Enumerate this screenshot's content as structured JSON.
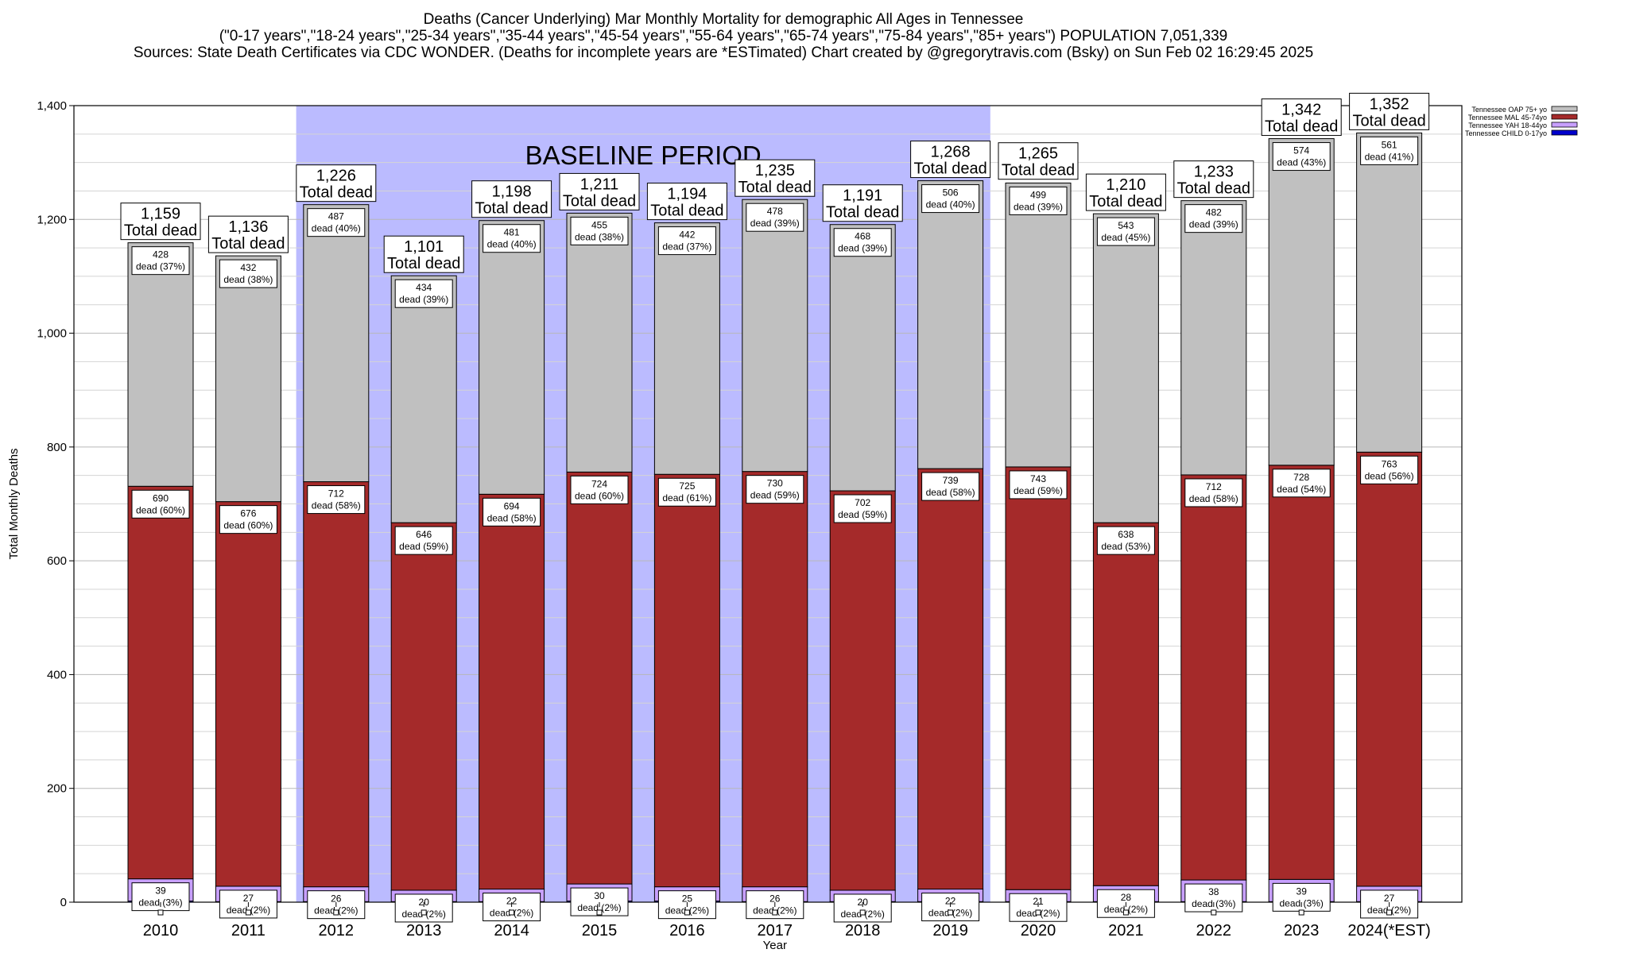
{
  "title": {
    "line1": "Deaths (Cancer Underlying) Mar Monthly Mortality for demographic All Ages in Tennessee",
    "line2": "(\"0-17 years\",\"18-24 years\",\"25-34 years\",\"35-44 years\",\"45-54 years\",\"55-64 years\",\"65-74 years\",\"75-84 years\",\"85+ years\") POPULATION 7,051,339",
    "line3": "Sources: State Death Certificates via CDC WONDER. (Deaths for incomplete years are *ESTimated)                Chart created by @gregorytravis.com (Bsky) on Sun Feb 02 16:29:45 2025"
  },
  "chart_data": {
    "type": "bar",
    "stacked": true,
    "xlabel": "Year",
    "ylabel": "Total Monthly Deaths",
    "ylim": [
      0,
      1400
    ],
    "y_ticks": [
      0,
      200,
      400,
      600,
      800,
      1000,
      1200,
      1400
    ],
    "y_tick_labels": [
      "0",
      "200",
      "400",
      "600",
      "800",
      "1,000",
      "1,200",
      "1,400"
    ],
    "grid": true,
    "categories": [
      "2010",
      "2011",
      "2012",
      "2013",
      "2014",
      "2015",
      "2016",
      "2017",
      "2018",
      "2019",
      "2020",
      "2021",
      "2022",
      "2023",
      "2024(*EST)"
    ],
    "series": [
      {
        "name": "Tennessee CHILD 0-17yo",
        "color": "#0000cc",
        "values": [
          2,
          1,
          1,
          1,
          1,
          2,
          2,
          1,
          1,
          1,
          1,
          1,
          1,
          1,
          1
        ]
      },
      {
        "name": "Tennessee YAH 18-44yo",
        "color": "#c8a0ff",
        "values": [
          39,
          27,
          26,
          20,
          22,
          30,
          25,
          26,
          20,
          22,
          21,
          28,
          38,
          39,
          27
        ]
      },
      {
        "name": "Tennessee MAL 45-74yo",
        "color": "#a52a2a",
        "values": [
          690,
          676,
          712,
          646,
          694,
          724,
          725,
          730,
          702,
          739,
          743,
          638,
          712,
          728,
          763
        ]
      },
      {
        "name": "Tennessee OAP 75+ yo",
        "color": "#c0c0c0",
        "values": [
          428,
          432,
          487,
          434,
          481,
          455,
          442,
          478,
          468,
          506,
          499,
          543,
          482,
          574,
          561
        ]
      }
    ],
    "segment_labels": {
      "Tennessee YAH 18-44yo": [
        "39",
        "27",
        "26",
        "20",
        "22",
        "30",
        "25",
        "26",
        "20",
        "22",
        "21",
        "28",
        "38",
        "39",
        "27"
      ],
      "Tennessee MAL 45-74yo": [
        "690",
        "676",
        "712",
        "646",
        "694",
        "724",
        "725",
        "730",
        "702",
        "739",
        "743",
        "638",
        "712",
        "728",
        "763"
      ],
      "Tennessee OAP 75+ yo": [
        "428",
        "432",
        "487",
        "434",
        "481",
        "455",
        "442",
        "478",
        "468",
        "506",
        "499",
        "543",
        "482",
        "574",
        "561"
      ]
    },
    "segment_pct": {
      "Tennessee YAH 18-44yo": [
        "dead (3%)",
        "dead (2%)",
        "dead (2%)",
        "dead (2%)",
        "dead (2%)",
        "dead (2%)",
        "dead (2%)",
        "dead (2%)",
        "dead (2%)",
        "dead (2%)",
        "dead (2%)",
        "dead (2%)",
        "dead (3%)",
        "dead (3%)",
        "dead (2%)"
      ],
      "Tennessee MAL 45-74yo": [
        "dead (60%)",
        "dead (60%)",
        "dead (58%)",
        "dead (59%)",
        "dead (58%)",
        "dead (60%)",
        "dead (61%)",
        "dead (59%)",
        "dead (59%)",
        "dead (58%)",
        "dead (59%)",
        "dead (53%)",
        "dead (58%)",
        "dead (54%)",
        "dead (56%)"
      ],
      "Tennessee OAP 75+ yo": [
        "dead (37%)",
        "dead (38%)",
        "dead (40%)",
        "dead (39%)",
        "dead (40%)",
        "dead (38%)",
        "dead (37%)",
        "dead (39%)",
        "dead (39%)",
        "dead (40%)",
        "dead (39%)",
        "dead (45%)",
        "dead (39%)",
        "dead (43%)",
        "dead (41%)"
      ]
    },
    "totals": [
      1159,
      1136,
      1226,
      1101,
      1198,
      1211,
      1194,
      1235,
      1191,
      1268,
      1265,
      1210,
      1233,
      1342,
      1352
    ],
    "total_labels": [
      "1,159",
      "1,136",
      "1,226",
      "1,101",
      "1,198",
      "1,211",
      "1,194",
      "1,235",
      "1,191",
      "1,268",
      "1,265",
      "1,210",
      "1,233",
      "1,342",
      "1,352"
    ],
    "total_suffix": "Total dead",
    "baseline": {
      "label": "BASELINE PERIOD",
      "from": "2012",
      "to": "2019",
      "color": "#bbbbff"
    },
    "legend_position": "top-right",
    "legend": [
      "Tennessee OAP 75+ yo",
      "Tennessee MAL 45-74yo",
      "Tennessee YAH 18-44yo",
      "Tennessee CHILD 0-17yo"
    ]
  }
}
